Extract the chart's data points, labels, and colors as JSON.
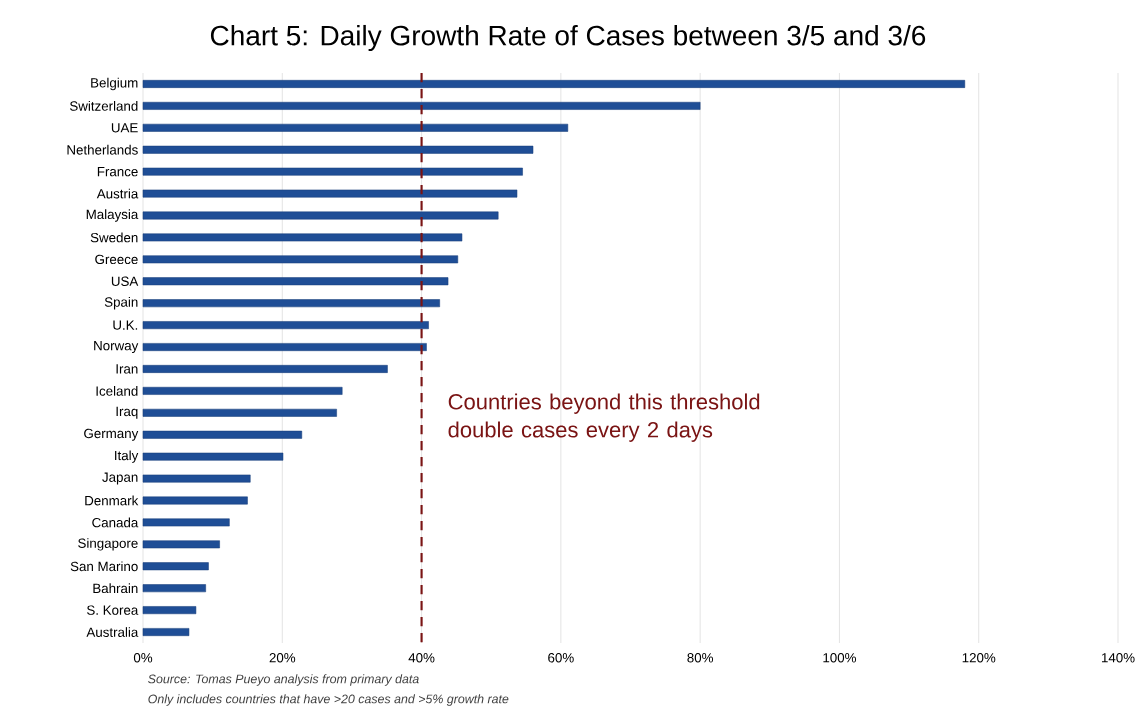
{
  "chart_data": {
    "type": "bar",
    "orientation": "horizontal",
    "title": "Chart 5: Daily Growth Rate of Cases between 3/5 and 3/6",
    "categories": [
      "Belgium",
      "Switzerland",
      "UAE",
      "Netherlands",
      "France",
      "Austria",
      "Malaysia",
      "Sweden",
      "Greece",
      "USA",
      "Spain",
      "U.K.",
      "Norway",
      "Iran",
      "Iceland",
      "Iraq",
      "Germany",
      "Italy",
      "Japan",
      "Denmark",
      "Canada",
      "Singapore",
      "San Marino",
      "Bahrain",
      "S. Korea",
      "Australia"
    ],
    "values": [
      118,
      80,
      61,
      56,
      54.5,
      53.7,
      51,
      45.8,
      45.2,
      43.8,
      42.6,
      41,
      40.7,
      35.1,
      28.6,
      27.8,
      22.8,
      20.1,
      15.4,
      15,
      12.4,
      11,
      9.4,
      9,
      7.6,
      6.6
    ],
    "color": "#1f4e96",
    "xlim": [
      0,
      140
    ],
    "xticks": [
      {
        "value": 0,
        "label": "0%"
      },
      {
        "value": 20,
        "label": "20%"
      },
      {
        "value": 40,
        "label": "40%"
      },
      {
        "value": 60,
        "label": "60%"
      },
      {
        "value": 80,
        "label": "80%"
      },
      {
        "value": 100,
        "label": "100%"
      },
      {
        "value": 120,
        "label": "120%"
      },
      {
        "value": 140,
        "label": "140%"
      }
    ],
    "grid": "x",
    "ref_lines": [
      {
        "axis": "x",
        "value": 40,
        "label": "Countries beyond this threshold double cases every 2 days",
        "color": "#7a1414",
        "line_style": "dashed"
      }
    ],
    "annotations": [
      "Source: Tomas Pueyo analysis from primary data",
      "Only includes countries that have >20 cases and >5% growth rate"
    ]
  }
}
